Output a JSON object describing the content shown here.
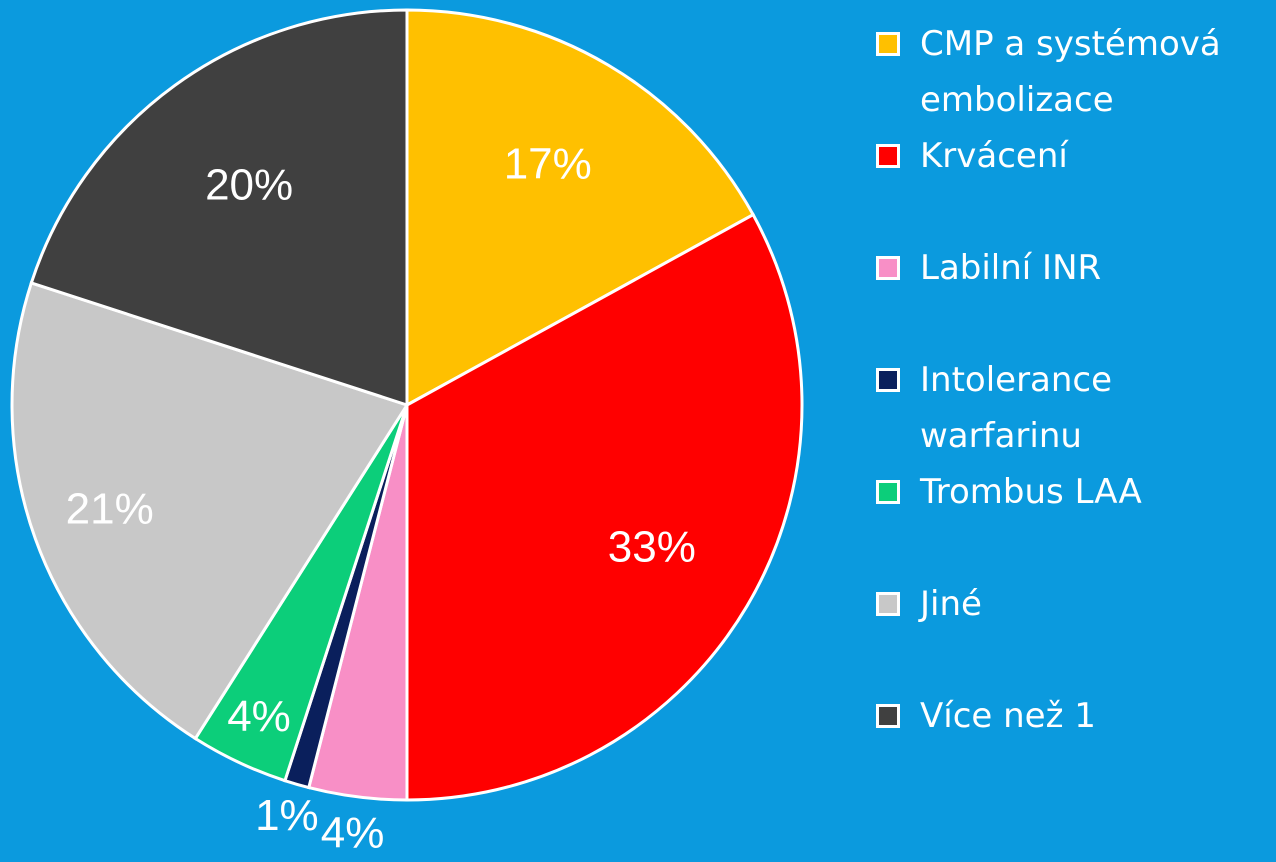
{
  "chart_data": {
    "type": "pie",
    "categories": [
      "CMP a systémová embolizace",
      "Krvácení",
      "Labilní INR",
      "Intolerance warfarinu",
      "Trombus LAA",
      "Jiné",
      "Více než 1"
    ],
    "values": [
      17,
      33,
      4,
      1,
      4,
      21,
      20
    ],
    "value_labels": [
      "17%",
      "33%",
      "4%",
      "1%",
      "4%",
      "21%",
      "20%"
    ],
    "colors": [
      "#ffc000",
      "#ff0000",
      "#f88fc6",
      "#0a1f5c",
      "#0cce7a",
      "#c8c8c8",
      "#404040"
    ],
    "legend": "right"
  }
}
